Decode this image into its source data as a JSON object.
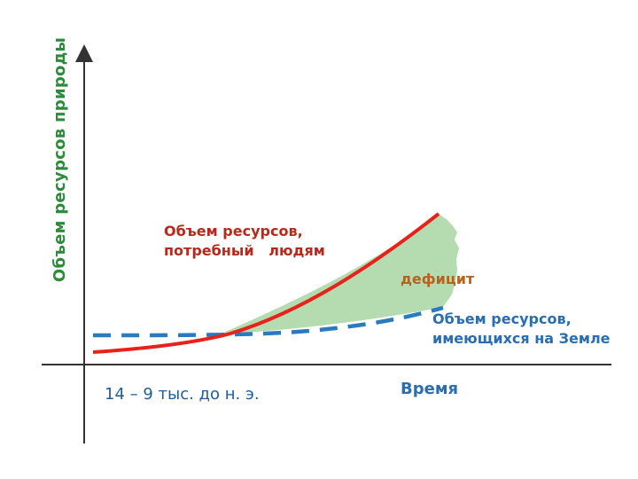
{
  "axes": {
    "y_title": "Объем ресурсов природы",
    "x_title": "Время",
    "period_label": "14 – 9 тыс. до н. э."
  },
  "labels": {
    "required_resources_line1": "Объем ресурсов,",
    "required_resources_line2": "потребный   людям",
    "deficit": "дефицит",
    "available_resources_line1": "Объем ресурсов,",
    "available_resources_line2": "имеющихся на Земле"
  },
  "colors": {
    "axis": "#333333",
    "required_line": "#e8221b",
    "available_line": "#2a7ac0",
    "deficit_fill": "#b5dcb0",
    "y_title": "#2e8b3c",
    "required_label": "#b52a1c",
    "deficit_label": "#b8621c",
    "available_label": "#2a6db0"
  }
}
